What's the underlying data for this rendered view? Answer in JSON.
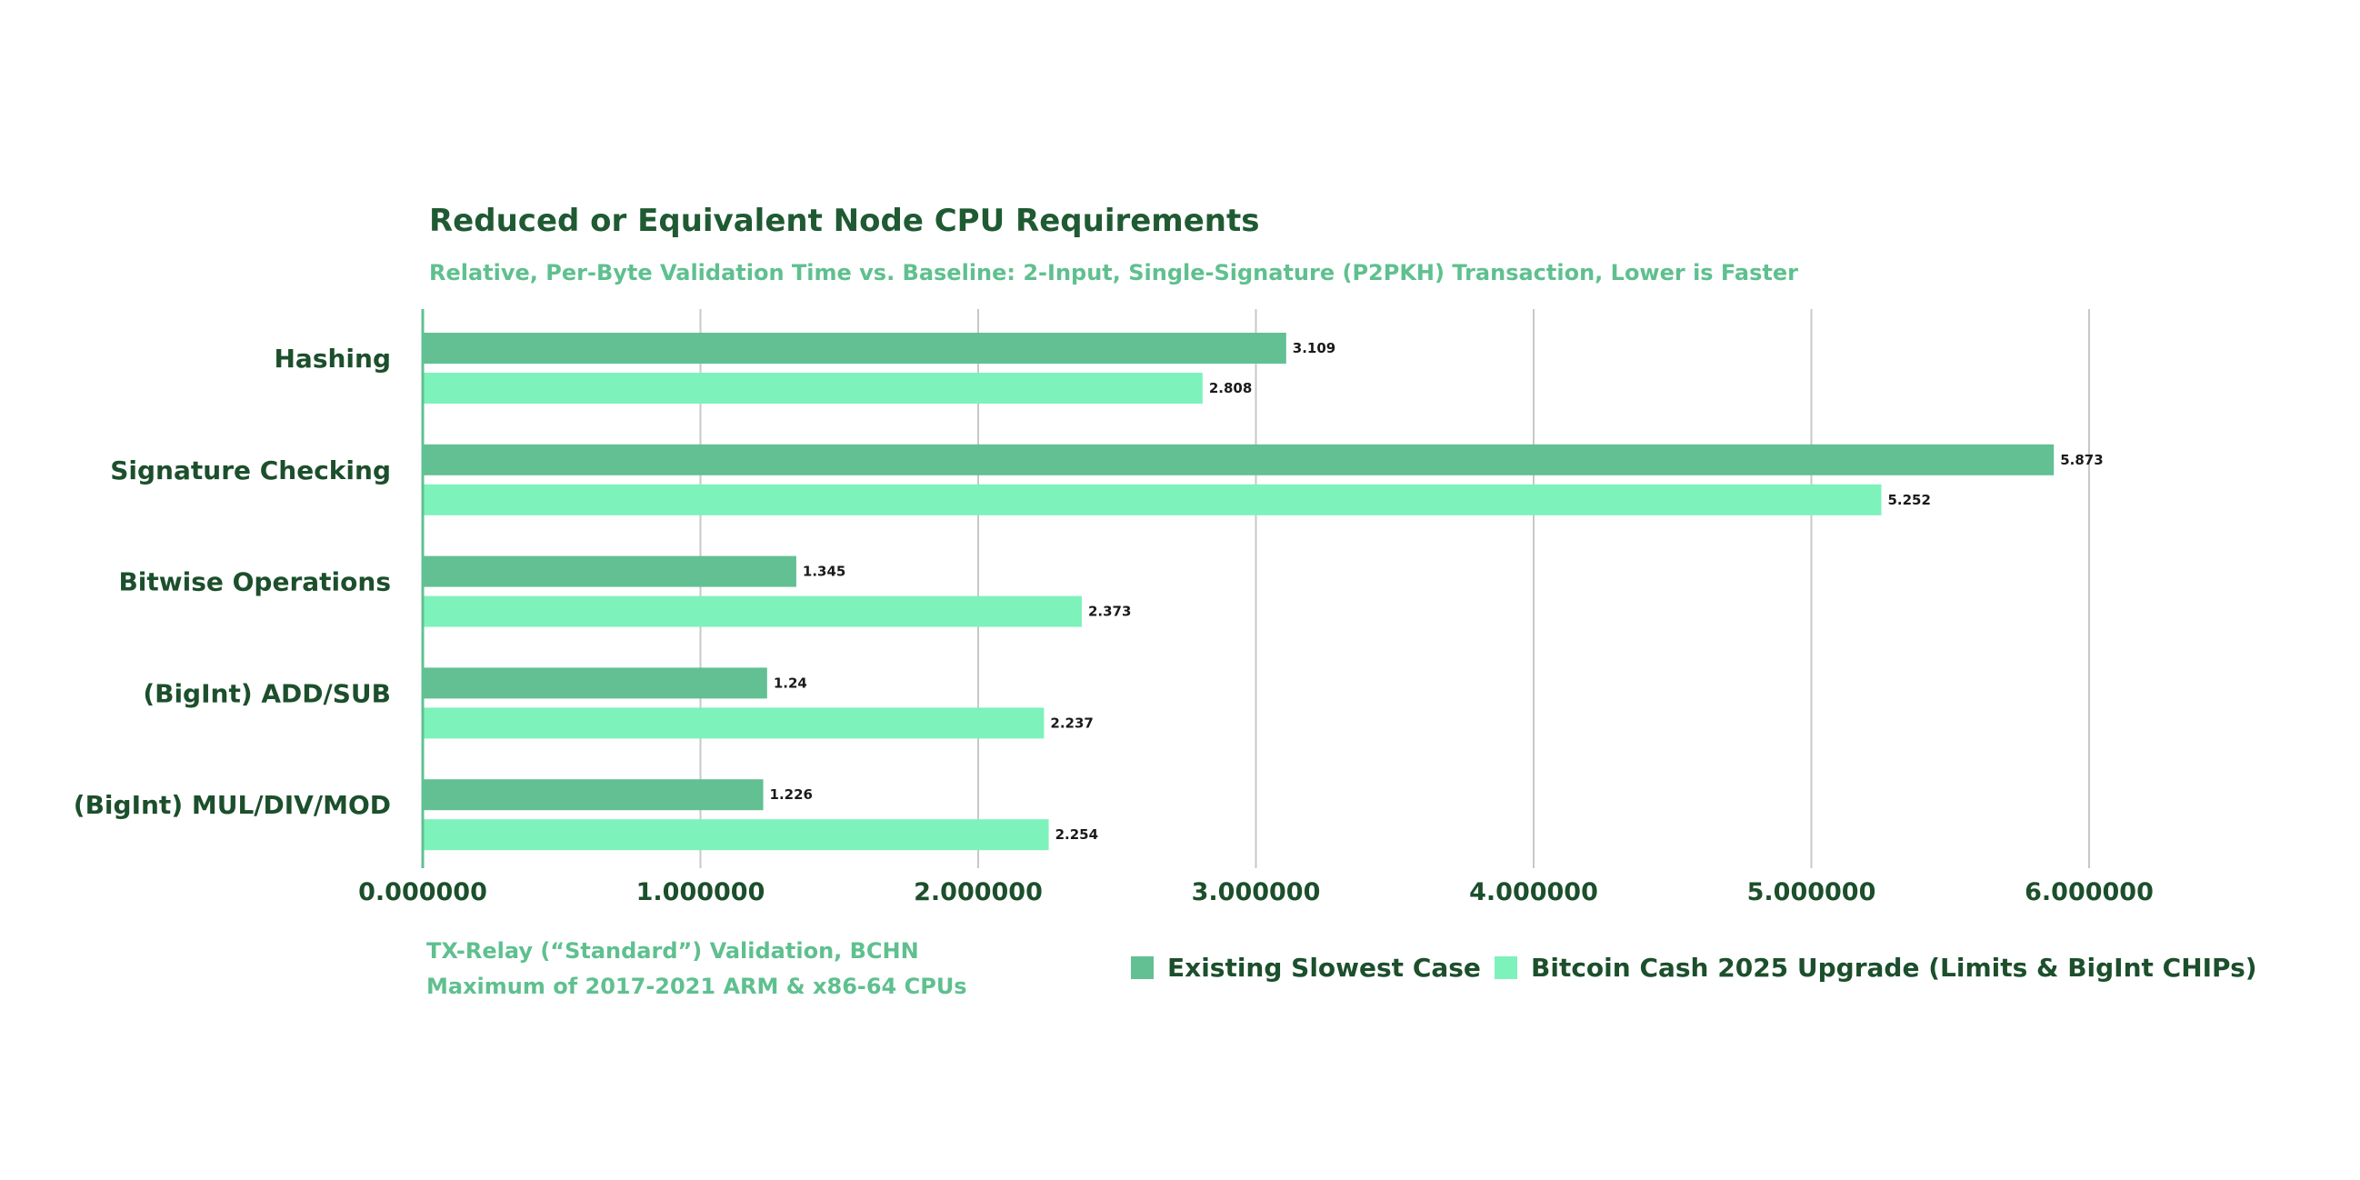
{
  "chart_data": {
    "type": "bar",
    "orientation": "horizontal",
    "title": "Reduced or Equivalent Node CPU Requirements",
    "subtitle": "Relative, Per-Byte Validation Time vs. Baseline: 2-Input, Single-Signature (P2PKH) Transaction, Lower is Faster",
    "categories": [
      "Hashing",
      "Signature Checking",
      "Bitwise Operations",
      "(BigInt) ADD/SUB",
      "(BigInt) MUL/DIV/MOD"
    ],
    "series": [
      {
        "name": "Existing Slowest Case",
        "color": "#62c092",
        "values": [
          3.109,
          5.873,
          1.345,
          1.24,
          1.226
        ],
        "labels": [
          "3.109",
          "5.873",
          "1.345",
          "1.24",
          "1.226"
        ]
      },
      {
        "name": "Bitcoin Cash 2025 Upgrade (Limits & BigInt CHIPs)",
        "color": "#7df2bb",
        "values": [
          2.808,
          5.252,
          2.373,
          2.237,
          2.254
        ],
        "labels": [
          "2.808",
          "5.252",
          "2.373",
          "2.237",
          "2.254"
        ]
      }
    ],
    "xlim": [
      0,
      6
    ],
    "xticks": [
      0,
      1,
      2,
      3,
      4,
      5,
      6
    ],
    "xtick_labels": [
      "0.000000",
      "1.000000",
      "2.000000",
      "3.000000",
      "4.000000",
      "5.000000",
      "6.000000"
    ],
    "grid": "vertical",
    "legend_position": "bottom-right",
    "footnote": [
      "TX-Relay (“Standard”) Validation, BCHN",
      "Maximum  of 2017-2021 ARM & x86-64 CPUs"
    ],
    "colors": {
      "title": "#1f5a32",
      "subtitle": "#5fc08f",
      "axis": "#62c092",
      "grid": "#c8c8c8",
      "text": "#1c4f2c"
    }
  }
}
